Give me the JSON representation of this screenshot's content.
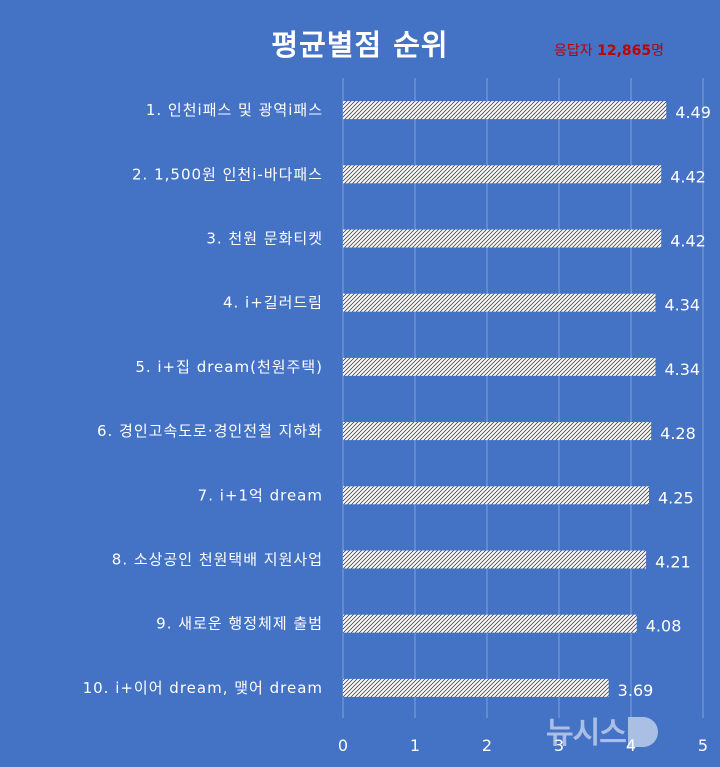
{
  "title": "평균별점 순위",
  "respondents": {
    "label": "응답자",
    "value": "12,865",
    "unit": "명"
  },
  "watermark": "뉴시스",
  "colors": {
    "background": "#4472c4",
    "bar_fill": "#ffffff",
    "bar_hatch": "#4a4a4a",
    "respondent_text": "#c00000"
  },
  "chart_data": {
    "type": "bar",
    "orientation": "horizontal",
    "title": "평균별점 순위",
    "categories": [
      "1. 인천i패스 및 광역i패스",
      "2. 1,500원 인천i-바다패스",
      "3. 천원 문화티켓",
      "4. i+길러드림",
      "5. i+집 dream(천원주택)",
      "6. 경인고속도로·경인전철 지하화",
      "7. i+1억 dream",
      "8. 소상공인 천원택배 지원사업",
      "9. 새로운 행정체제 출범",
      "10. i+이어 dream, 맺어 dream"
    ],
    "values": [
      4.49,
      4.42,
      4.42,
      4.34,
      4.34,
      4.28,
      4.25,
      4.21,
      4.08,
      3.69
    ],
    "value_labels": [
      "4.49",
      "4.42",
      "4.42",
      "4.34",
      "4.34",
      "4.28",
      "4.25",
      "4.21",
      "4.08",
      "3.69"
    ],
    "xlim": [
      0,
      5
    ],
    "x_ticks": [
      "0",
      "1",
      "2",
      "3",
      "4",
      "5"
    ],
    "grid": true,
    "bar_pattern": "diagonal-hatch"
  }
}
